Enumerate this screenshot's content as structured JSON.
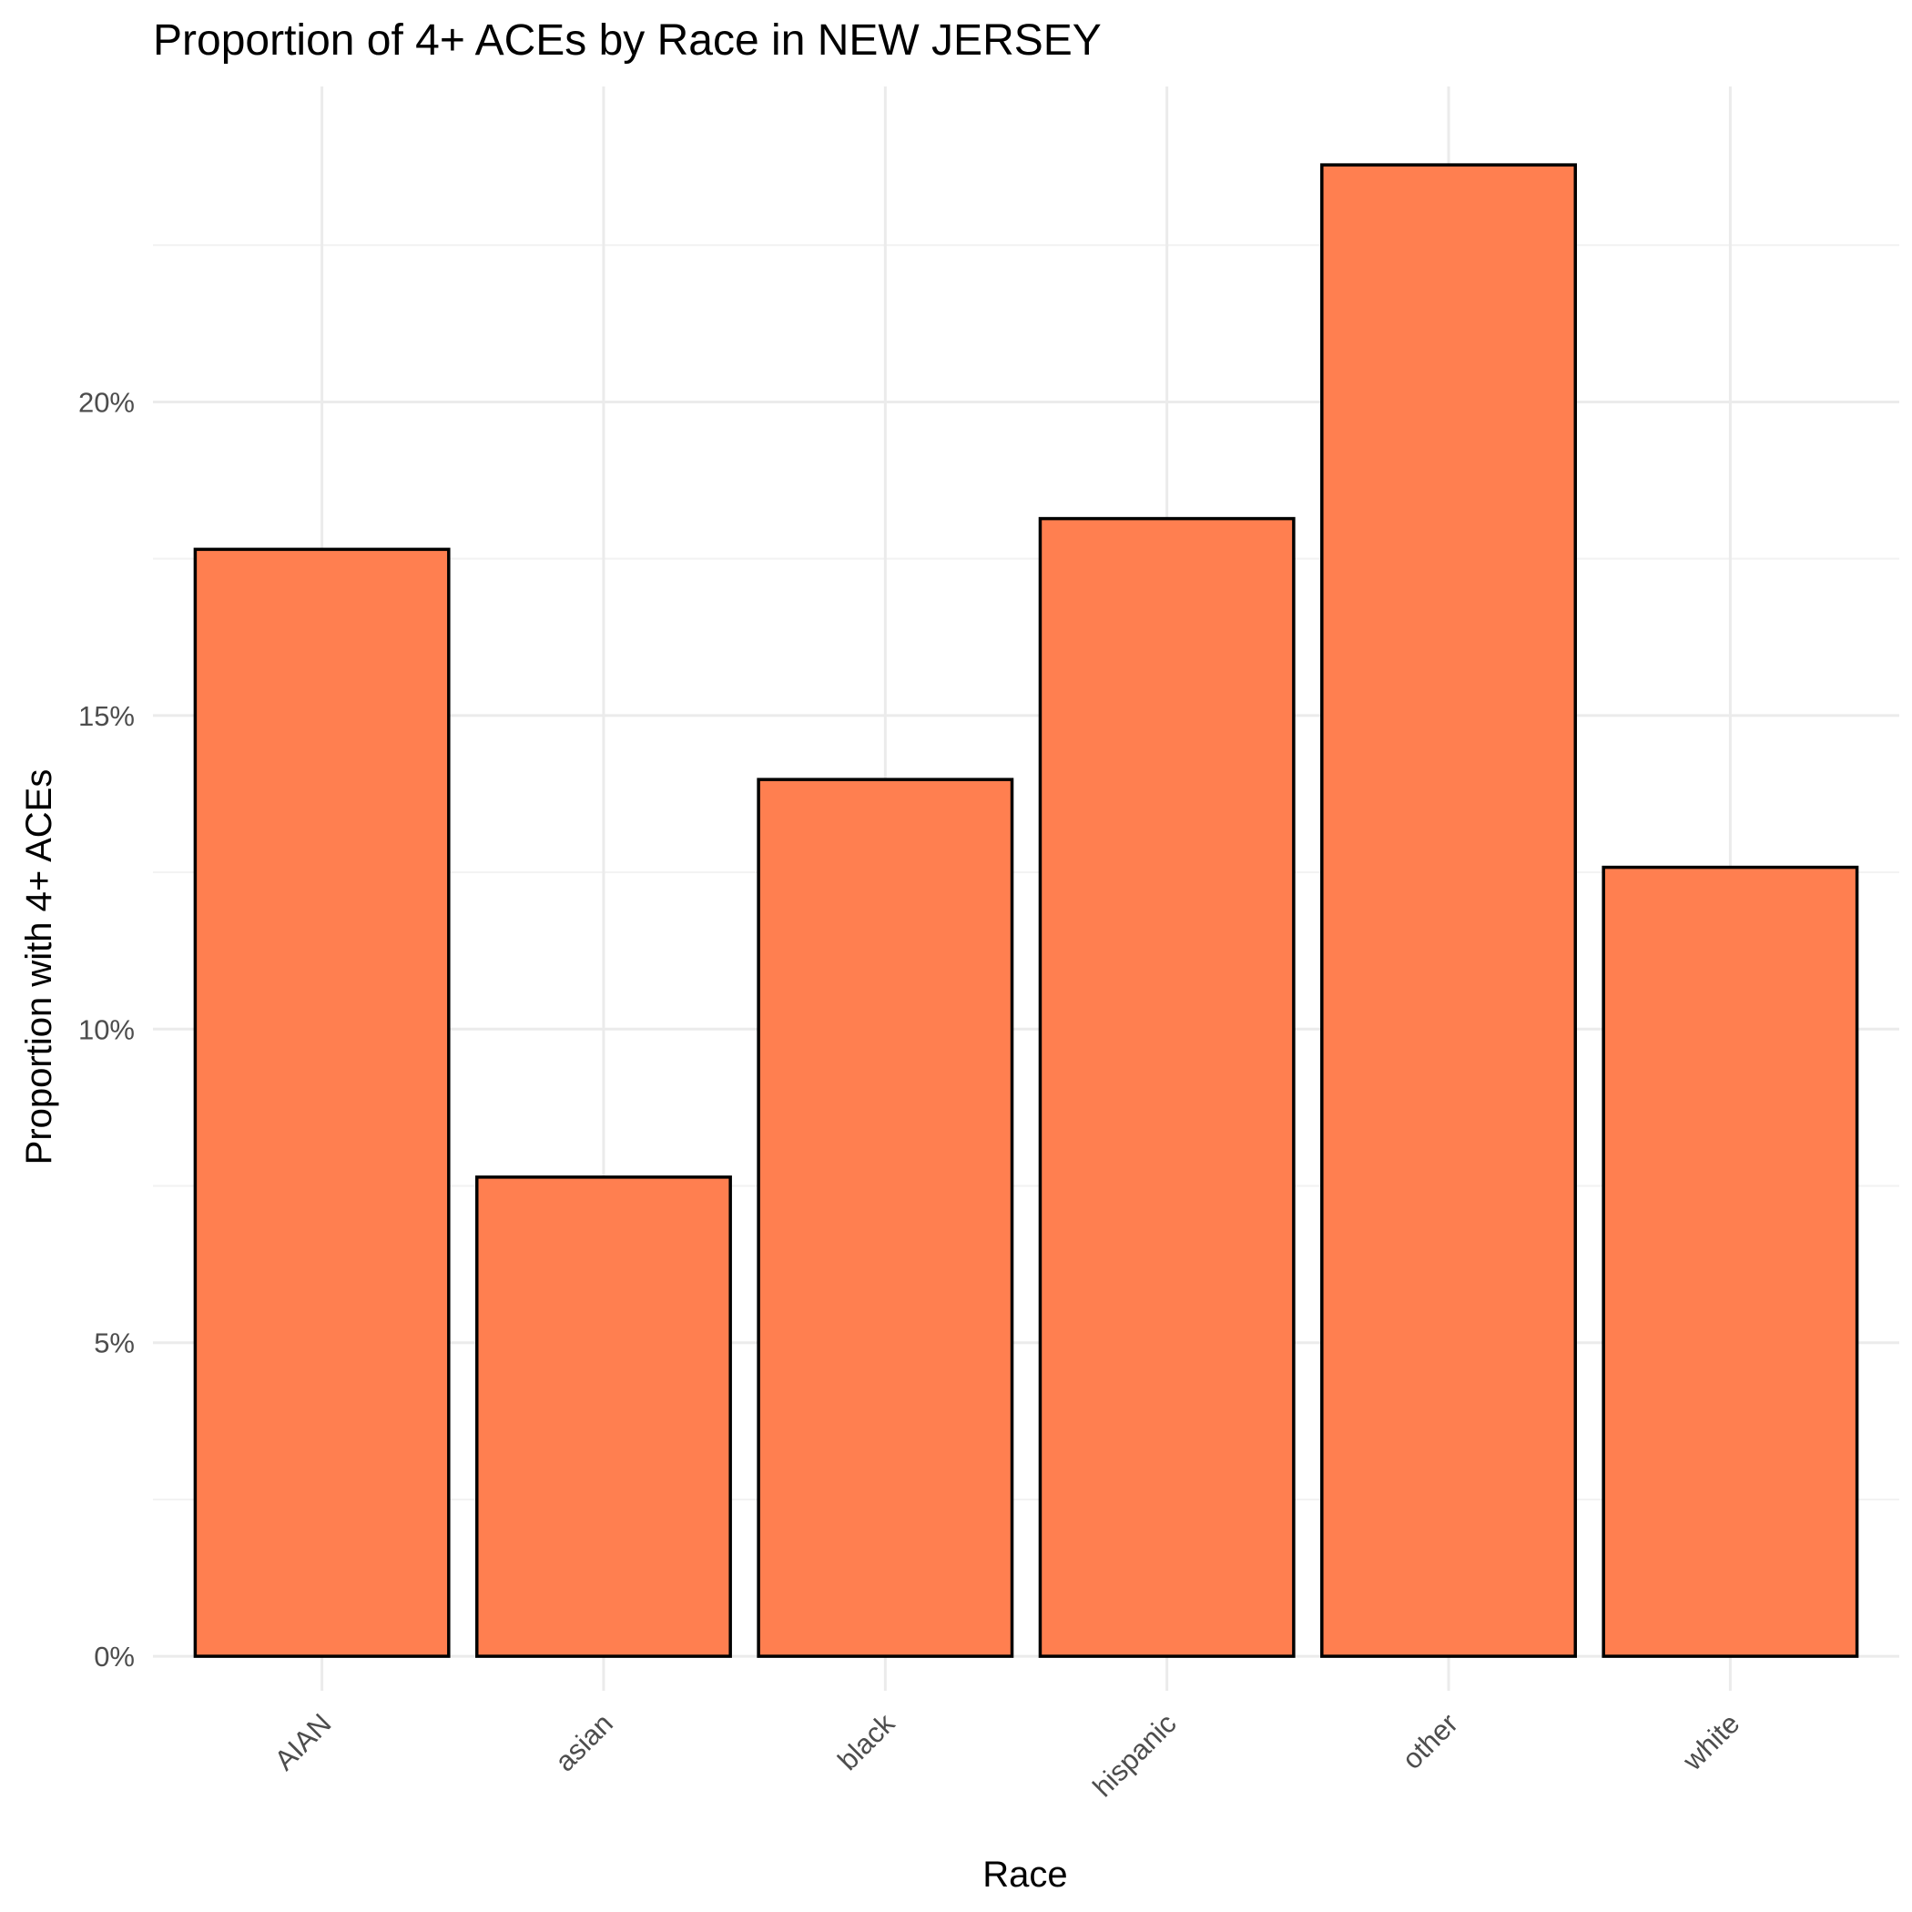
{
  "chart_data": {
    "type": "bar",
    "title": "Proportion of 4+ ACEs by Race in NEW JERSEY",
    "xlabel": "Race",
    "ylabel": "Proportion with 4+ ACEs",
    "categories": [
      "AIAN",
      "asian",
      "black",
      "hispanic",
      "other",
      "white"
    ],
    "values": [
      0.1765,
      0.0764,
      0.1398,
      0.1814,
      0.2378,
      0.1258
    ],
    "ylim": [
      -0.0055,
      0.2503
    ],
    "yticks": [
      0,
      0.05,
      0.1,
      0.15,
      0.2
    ],
    "ytick_labels": [
      "0%",
      "5%",
      "10%",
      "15%",
      "20%"
    ],
    "y_format": "percent",
    "grid": true,
    "legend": "none",
    "bar_fill": "#FF7F50",
    "bar_outline": "#000000"
  }
}
